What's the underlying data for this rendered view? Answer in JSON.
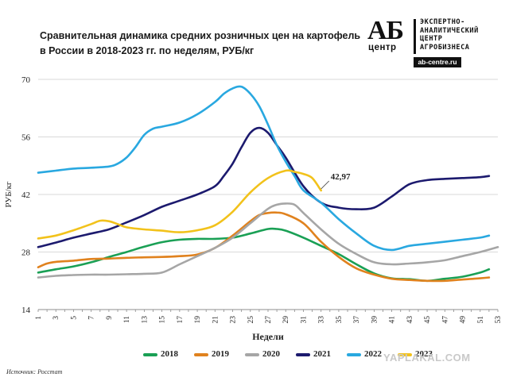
{
  "header": {
    "title": "Сравнительная  динамика средних розничных цен на картофель в России в 2018-2023 гг. по неделям, РУБ/кг"
  },
  "logo": {
    "mark": "АБ",
    "mark_sub": "центр",
    "text_lines": [
      "ЭКСПЕРТНО-",
      "АНАЛИТИЧЕСКИЙ",
      "ЦЕНТР",
      "АГРОБИЗНЕСА"
    ],
    "url": "ab-centre.ru"
  },
  "footer": {
    "source": "Источник: Росстат",
    "watermark": "YAPLAKAL.COM"
  },
  "chart_data": {
    "type": "line",
    "title": "Сравнительная  динамика средних розничных цен на картофель в России в 2018-2023 гг. по неделям, РУБ/кг",
    "xlabel": "Недели",
    "ylabel": "РУБ/кг",
    "ylim": [
      14,
      70
    ],
    "yticks": [
      14,
      28,
      42,
      56,
      70
    ],
    "xlim": [
      1,
      53
    ],
    "xticks": [
      1,
      3,
      5,
      7,
      9,
      11,
      13,
      15,
      17,
      19,
      21,
      23,
      25,
      27,
      29,
      31,
      33,
      35,
      37,
      39,
      41,
      43,
      45,
      47,
      49,
      51,
      53
    ],
    "grid": "horizontal",
    "legend_position": "bottom",
    "annotation": {
      "text": "42,97",
      "series": "2023",
      "x": 33,
      "y": 42.97
    },
    "series": [
      {
        "name": "2018",
        "color": "#1aa055",
        "x": [
          1,
          3,
          5,
          7,
          9,
          11,
          13,
          15,
          17,
          19,
          21,
          23,
          25,
          27,
          28,
          29,
          31,
          33,
          35,
          37,
          39,
          41,
          43,
          45,
          47,
          49,
          51,
          52
        ],
        "values": [
          23.0,
          23.8,
          24.5,
          25.5,
          26.8,
          28.0,
          29.3,
          30.4,
          31.0,
          31.2,
          31.2,
          31.5,
          32.5,
          33.6,
          33.6,
          33.2,
          31.5,
          29.5,
          27.5,
          25.0,
          22.8,
          21.6,
          21.4,
          21.0,
          21.5,
          22.0,
          23.0,
          23.8
        ]
      },
      {
        "name": "2019",
        "color": "#e0821e",
        "x": [
          1,
          2,
          3,
          5,
          7,
          9,
          11,
          13,
          15,
          17,
          19,
          21,
          23,
          25,
          26,
          27,
          28,
          29,
          31,
          33,
          35,
          37,
          39,
          41,
          43,
          45,
          47,
          49,
          51,
          52
        ],
        "values": [
          24.3,
          25.2,
          25.6,
          25.9,
          26.3,
          26.4,
          26.6,
          26.7,
          26.8,
          27.0,
          27.4,
          29.0,
          32.0,
          35.5,
          37.0,
          37.5,
          37.6,
          37.2,
          35.0,
          30.5,
          26.8,
          24.0,
          22.5,
          21.5,
          21.2,
          21.0,
          21.0,
          21.3,
          21.6,
          21.8
        ]
      },
      {
        "name": "2020",
        "color": "#a6a6a6",
        "x": [
          1,
          3,
          5,
          7,
          9,
          11,
          13,
          15,
          17,
          19,
          21,
          23,
          25,
          27,
          28,
          29,
          30,
          31,
          33,
          35,
          37,
          39,
          41,
          43,
          45,
          47,
          49,
          51,
          53
        ],
        "values": [
          21.8,
          22.2,
          22.4,
          22.5,
          22.5,
          22.6,
          22.7,
          23.0,
          25.0,
          27.0,
          29.0,
          31.5,
          35.0,
          38.5,
          39.5,
          39.8,
          39.5,
          37.5,
          33.5,
          30.0,
          27.5,
          25.5,
          25.0,
          25.2,
          25.5,
          26.0,
          27.0,
          28.0,
          29.2
        ]
      },
      {
        "name": "2021",
        "color": "#1c1a6e",
        "x": [
          1,
          3,
          5,
          7,
          9,
          11,
          13,
          15,
          17,
          19,
          21,
          22,
          23,
          24,
          25,
          26,
          27,
          28,
          29,
          31,
          33,
          35,
          37,
          39,
          41,
          43,
          45,
          47,
          49,
          51,
          52
        ],
        "values": [
          29.2,
          30.3,
          31.5,
          32.5,
          33.5,
          35.2,
          37.0,
          39.0,
          40.5,
          42.0,
          44.0,
          46.5,
          49.5,
          53.5,
          57.0,
          58.2,
          57.0,
          54.0,
          51.0,
          44.0,
          40.0,
          38.8,
          38.4,
          38.8,
          41.5,
          44.5,
          45.5,
          45.8,
          46.0,
          46.2,
          46.5
        ]
      },
      {
        "name": "2022",
        "color": "#29a8e0",
        "x": [
          1,
          3,
          5,
          7,
          9,
          10,
          11,
          12,
          13,
          14,
          15,
          17,
          19,
          21,
          22,
          23,
          24,
          25,
          26,
          27,
          28,
          29,
          30,
          31,
          33,
          35,
          37,
          39,
          41,
          43,
          45,
          47,
          49,
          51,
          52
        ],
        "values": [
          47.3,
          47.8,
          48.3,
          48.5,
          48.8,
          49.5,
          51.0,
          53.5,
          56.5,
          58.0,
          58.5,
          59.5,
          61.5,
          64.5,
          66.5,
          67.8,
          68.2,
          66.5,
          63.5,
          59.0,
          54.0,
          50.0,
          46.5,
          43.0,
          40.0,
          36.0,
          32.5,
          29.5,
          28.5,
          29.5,
          30.0,
          30.5,
          31.0,
          31.5,
          32.0
        ]
      },
      {
        "name": "2023",
        "color": "#f2c21b",
        "x": [
          1,
          3,
          5,
          7,
          8,
          9,
          10,
          11,
          13,
          15,
          17,
          19,
          21,
          23,
          25,
          27,
          29,
          30,
          31,
          32,
          33
        ],
        "values": [
          31.3,
          32.0,
          33.3,
          34.8,
          35.6,
          35.5,
          34.8,
          34.0,
          33.5,
          33.2,
          32.8,
          33.3,
          34.5,
          37.8,
          42.5,
          46.0,
          47.8,
          47.5,
          47.0,
          46.0,
          42.97
        ]
      }
    ]
  }
}
